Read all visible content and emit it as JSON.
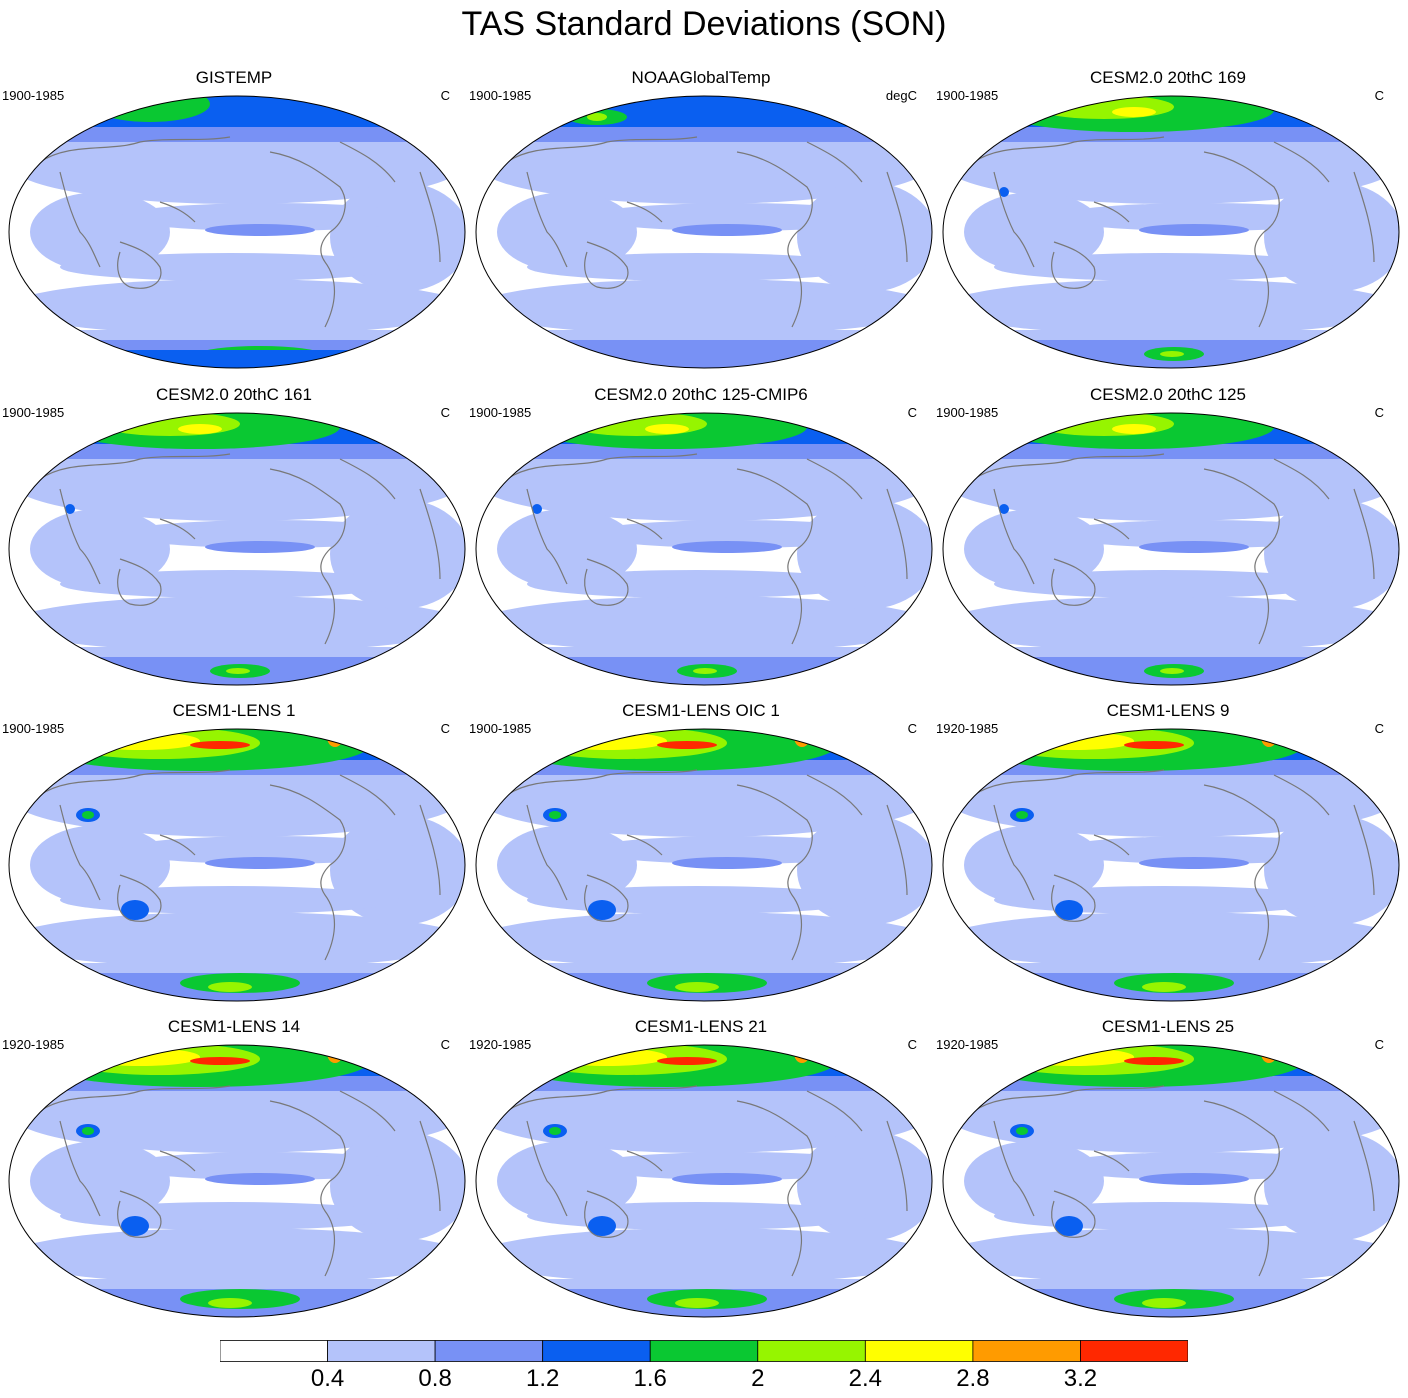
{
  "title": "TAS Standard Deviations (SON)",
  "panels": [
    {
      "title": "GISTEMP",
      "period": "1900-1985",
      "unit": "C",
      "style": "obs"
    },
    {
      "title": "NOAAGlobalTemp",
      "period": "1900-1985",
      "unit": "degC",
      "style": "obs2"
    },
    {
      "title": "CESM2.0 20thC 169",
      "period": "1900-1985",
      "unit": "C",
      "style": "cesm2"
    },
    {
      "title": "CESM2.0 20thC 161",
      "period": "1900-1985",
      "unit": "C",
      "style": "cesm2"
    },
    {
      "title": "CESM2.0 20thC 125-CMIP6",
      "period": "1900-1985",
      "unit": "C",
      "style": "cesm2"
    },
    {
      "title": "CESM2.0 20thC 125",
      "period": "1900-1985",
      "unit": "C",
      "style": "cesm2"
    },
    {
      "title": "CESM1-LENS 1",
      "period": "1900-1985",
      "unit": "C",
      "style": "lens"
    },
    {
      "title": "CESM1-LENS OIC 1",
      "period": "1900-1985",
      "unit": "C",
      "style": "lens"
    },
    {
      "title": "CESM1-LENS 9",
      "period": "1920-1985",
      "unit": "C",
      "style": "lens"
    },
    {
      "title": "CESM1-LENS 14",
      "period": "1920-1985",
      "unit": "C",
      "style": "lens"
    },
    {
      "title": "CESM1-LENS 21",
      "period": "1920-1985",
      "unit": "C",
      "style": "lens"
    },
    {
      "title": "CESM1-LENS 25",
      "period": "1920-1985",
      "unit": "C",
      "style": "lens"
    }
  ],
  "colorbar": {
    "labels": [
      "0.4",
      "0.8",
      "1.2",
      "1.6",
      "2",
      "2.4",
      "2.8",
      "3.2"
    ],
    "colors": [
      "#ffffff",
      "#b4c3fa",
      "#7891f5",
      "#0a5ff0",
      "#0ac832",
      "#96f500",
      "#ffff00",
      "#ff9b00",
      "#ff2800"
    ]
  },
  "colors": {
    "coastline": "#787878",
    "border": "#000000"
  }
}
